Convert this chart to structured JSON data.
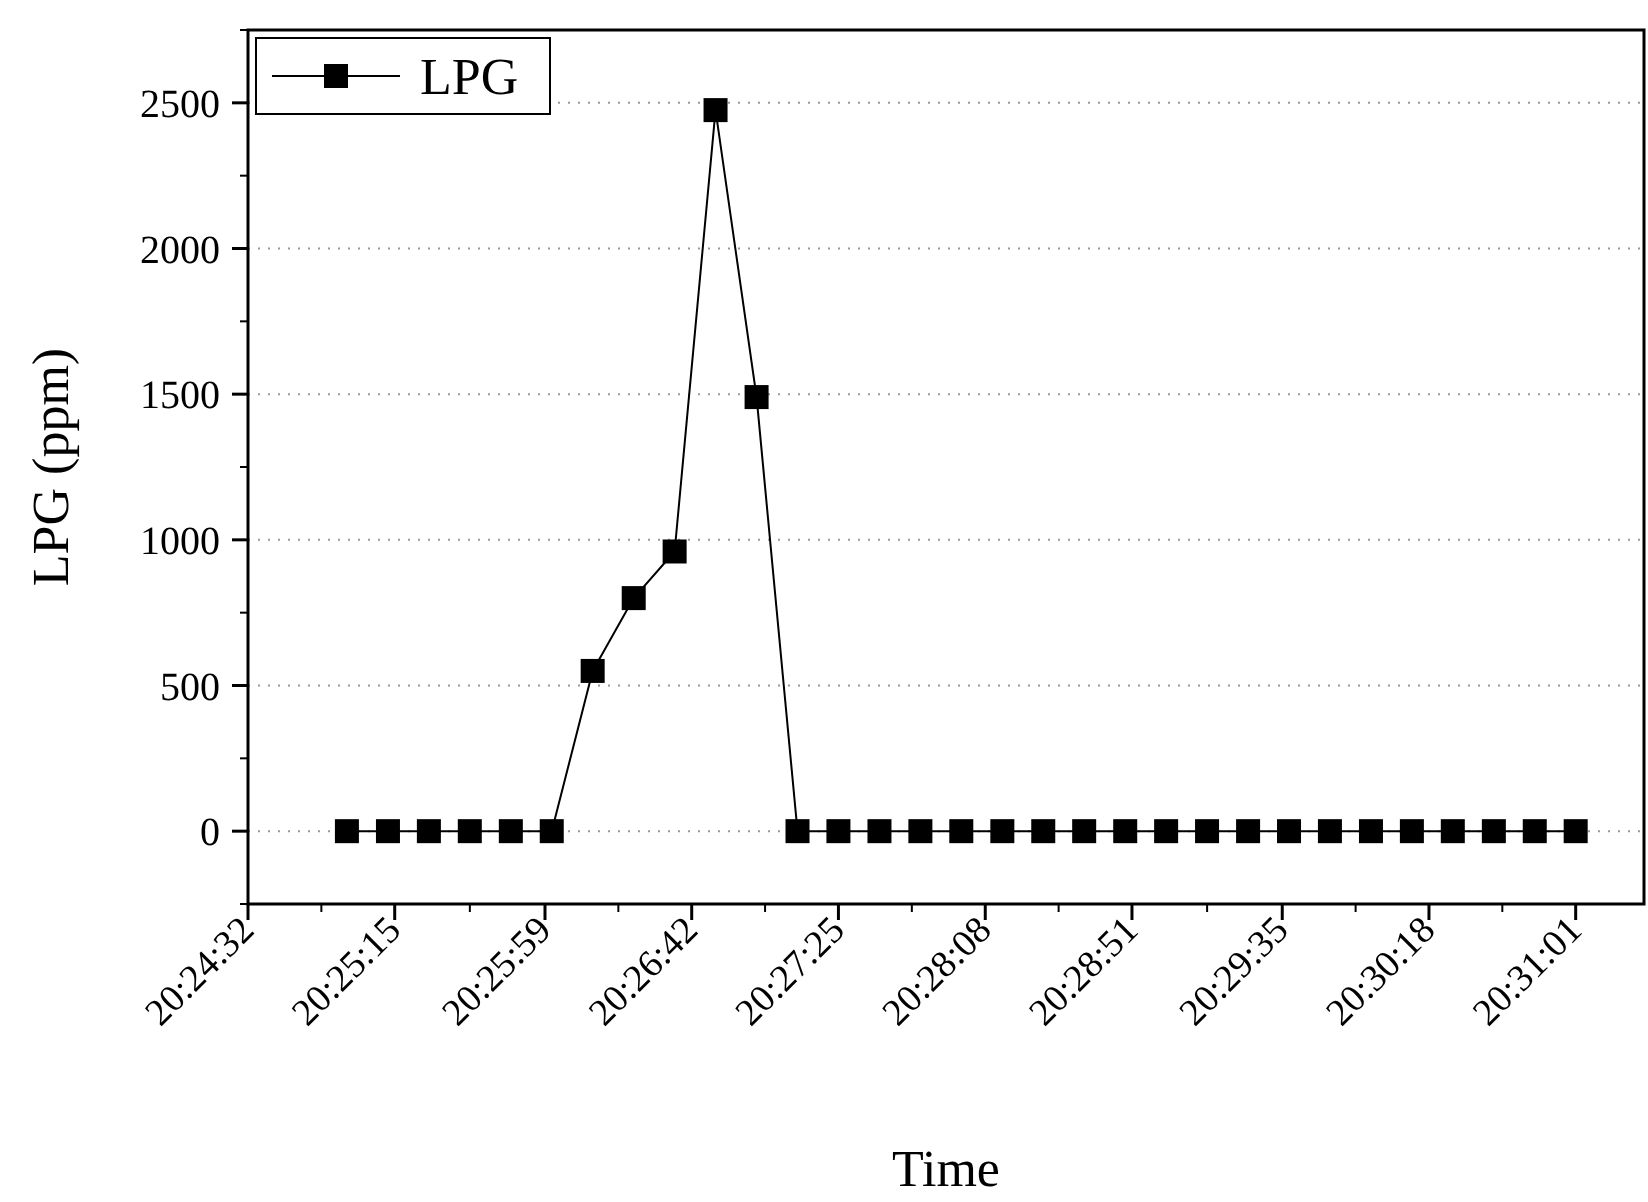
{
  "chart_data": {
    "type": "line",
    "xlabel": "Time",
    "ylabel": "LPG (ppm)",
    "x": [
      20.41694,
      20.42028,
      20.42361,
      20.42694,
      20.43028,
      20.43361,
      20.43694,
      20.44028,
      20.44361,
      20.44694,
      20.45028,
      20.45361,
      20.45694,
      20.46028,
      20.46361,
      20.46694,
      20.47028,
      20.47361,
      20.47694,
      20.48028,
      20.48361,
      20.48694,
      20.49028,
      20.49361,
      20.49694,
      20.50028,
      20.50361,
      20.50694,
      20.51028,
      20.51361,
      20.51694
    ],
    "series": [
      {
        "name": "LPG",
        "color": "#000000",
        "values": [
          0,
          0,
          0,
          0,
          0,
          0,
          550,
          800,
          960,
          2475,
          1490,
          0,
          0,
          0,
          0,
          0,
          0,
          0,
          0,
          0,
          0,
          0,
          0,
          0,
          0,
          0,
          0,
          0,
          0,
          0,
          0
        ]
      }
    ],
    "xlim": [
      20.40889,
      20.5225
    ],
    "xticks": [
      {
        "value": 20.40889,
        "label": "20:24:32"
      },
      {
        "value": 20.42083,
        "label": "20:25:15"
      },
      {
        "value": 20.43306,
        "label": "20:25:59"
      },
      {
        "value": 20.445,
        "label": "20:26:42"
      },
      {
        "value": 20.45694,
        "label": "20:27:25"
      },
      {
        "value": 20.46889,
        "label": "20:28:08"
      },
      {
        "value": 20.48083,
        "label": "20:28:51"
      },
      {
        "value": 20.49306,
        "label": "20:29:35"
      },
      {
        "value": 20.505,
        "label": "20:30:18"
      },
      {
        "value": 20.51694,
        "label": "20:31:01"
      }
    ],
    "ylim": [
      -250,
      2750
    ],
    "yticks": [
      0,
      500,
      1000,
      1500,
      2000,
      2500
    ],
    "grid": "y",
    "legend": "top left",
    "marker": "square",
    "line_style": "solid"
  }
}
